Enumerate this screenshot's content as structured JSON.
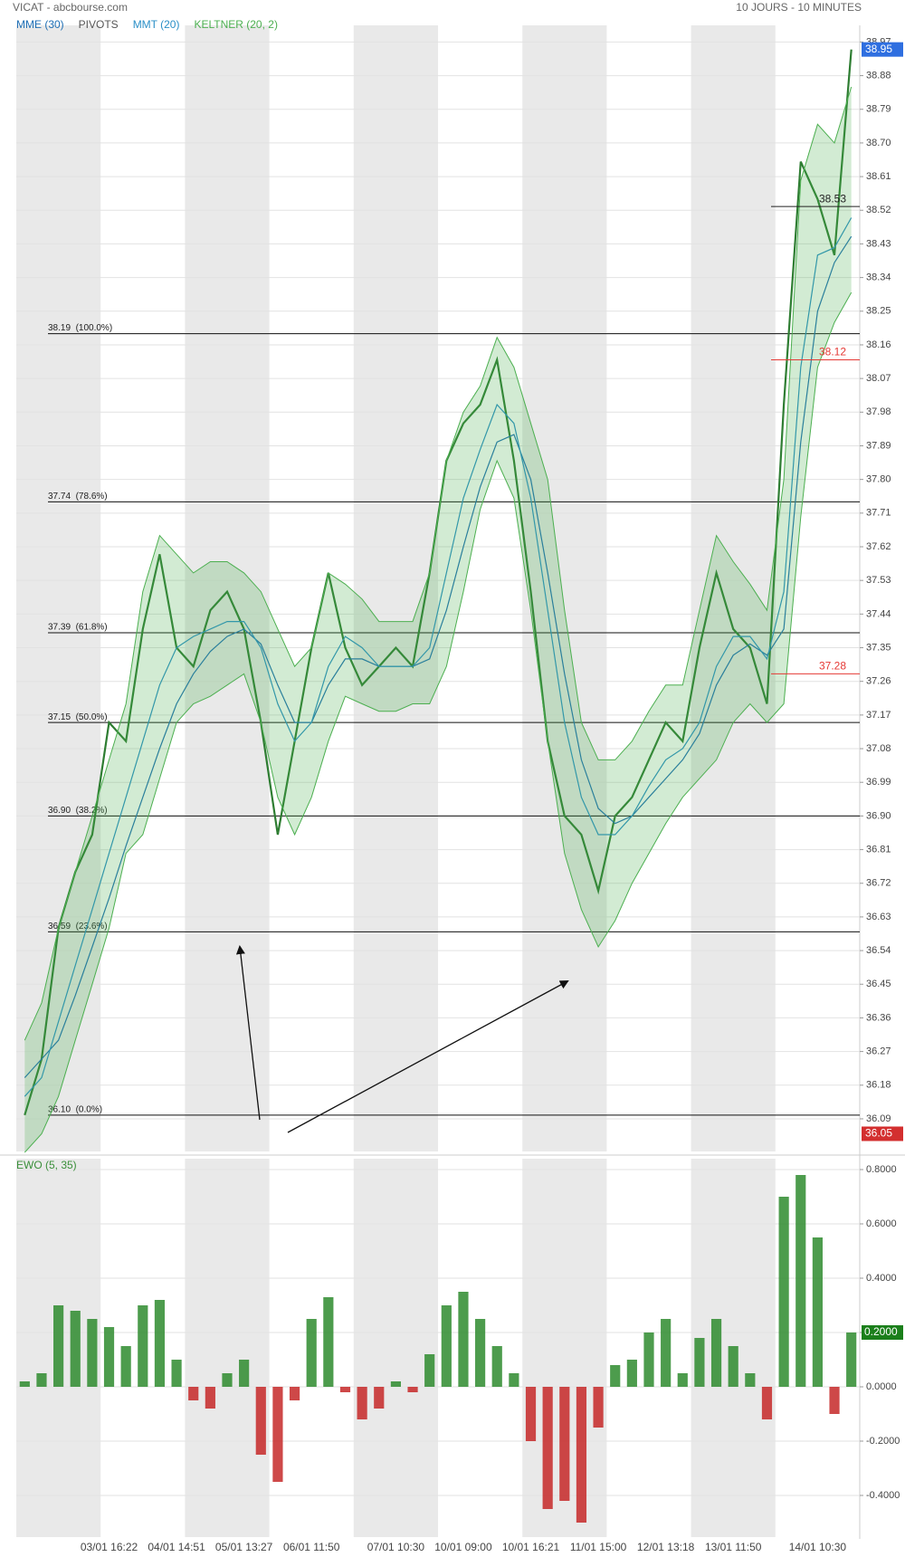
{
  "header": {
    "title": "VICAT - abcbourse.com",
    "period": "10 JOURS - 10 MINUTES"
  },
  "chart_data": [
    {
      "type": "line",
      "ylim": [
        36.01,
        39.0
      ],
      "yticks": [
        36.09,
        36.18,
        36.27,
        36.36,
        36.45,
        36.54,
        36.63,
        36.72,
        36.81,
        {
          "value": 36.9,
          "label": "36.90"
        },
        36.99,
        37.08,
        37.17,
        37.26,
        37.35,
        37.44,
        37.53,
        37.62,
        37.71,
        {
          "value": 37.8,
          "label": "37.80"
        },
        37.89,
        37.98,
        38.07,
        38.16,
        38.25,
        38.34,
        38.43,
        38.52,
        38.61,
        {
          "value": 38.7,
          "label": "38.70"
        },
        38.79,
        38.88,
        38.97
      ],
      "grid": true,
      "series": [
        {
          "color": "#2e7d32",
          "values": [
            36.1,
            36.25,
            36.6,
            36.75,
            36.85,
            37.15,
            37.1,
            37.4,
            37.6,
            37.35,
            37.3,
            37.45,
            37.5,
            37.4,
            37.15,
            36.85,
            37.1,
            37.35,
            37.55,
            37.35,
            37.25,
            37.3,
            37.35,
            37.3,
            37.55,
            37.85,
            37.95,
            38.0,
            38.12,
            37.85,
            37.5,
            37.1,
            36.9,
            36.85,
            36.7,
            36.9,
            36.95,
            37.05,
            37.15,
            37.1,
            37.35,
            37.55,
            37.4,
            37.35,
            37.2,
            38.0,
            38.65,
            38.55,
            38.4,
            38.95
          ]
        },
        {
          "name": "MME (30)",
          "color": "#1f6fb5",
          "values": [
            36.2,
            36.25,
            36.3,
            36.42,
            36.55,
            36.68,
            36.82,
            36.95,
            37.08,
            37.2,
            37.28,
            37.34,
            37.38,
            37.4,
            37.36,
            37.25,
            37.15,
            37.15,
            37.25,
            37.32,
            37.32,
            37.3,
            37.3,
            37.3,
            37.32,
            37.45,
            37.62,
            37.78,
            37.9,
            37.92,
            37.8,
            37.55,
            37.28,
            37.05,
            36.92,
            36.88,
            36.9,
            36.95,
            37.0,
            37.05,
            37.12,
            37.25,
            37.33,
            37.36,
            37.33,
            37.4,
            37.9,
            38.25,
            38.38,
            38.45
          ]
        },
        {
          "name": "MMT (20)",
          "color": "#2a8fc7",
          "values": [
            36.15,
            36.2,
            36.35,
            36.5,
            36.65,
            36.8,
            36.95,
            37.1,
            37.25,
            37.35,
            37.38,
            37.4,
            37.42,
            37.42,
            37.35,
            37.2,
            37.1,
            37.15,
            37.3,
            37.38,
            37.35,
            37.3,
            37.3,
            37.3,
            37.35,
            37.55,
            37.75,
            37.88,
            38.0,
            37.95,
            37.75,
            37.45,
            37.15,
            36.95,
            36.85,
            36.85,
            36.9,
            36.98,
            37.05,
            37.08,
            37.15,
            37.3,
            37.38,
            37.38,
            37.32,
            37.5,
            38.1,
            38.4,
            38.42,
            38.5
          ]
        },
        {
          "name": "KELTNER (20, 2)",
          "color": "#4caf50",
          "upper": [
            36.3,
            36.4,
            36.6,
            36.75,
            36.9,
            37.05,
            37.2,
            37.5,
            37.65,
            37.6,
            37.55,
            37.58,
            37.58,
            37.55,
            37.5,
            37.4,
            37.3,
            37.35,
            37.55,
            37.52,
            37.48,
            37.42,
            37.42,
            37.42,
            37.55,
            37.85,
            37.98,
            38.05,
            38.18,
            38.1,
            37.95,
            37.8,
            37.45,
            37.15,
            37.05,
            37.05,
            37.1,
            37.18,
            37.25,
            37.25,
            37.45,
            37.65,
            37.58,
            37.52,
            37.45,
            37.8,
            38.6,
            38.75,
            38.7,
            38.85
          ],
          "lower": [
            36.0,
            36.05,
            36.15,
            36.3,
            36.45,
            36.6,
            36.8,
            36.85,
            37.0,
            37.15,
            37.2,
            37.22,
            37.25,
            37.28,
            37.15,
            36.95,
            36.85,
            36.95,
            37.1,
            37.22,
            37.2,
            37.18,
            37.18,
            37.2,
            37.2,
            37.3,
            37.5,
            37.72,
            37.85,
            37.75,
            37.45,
            37.1,
            36.8,
            36.65,
            36.55,
            36.62,
            36.72,
            36.8,
            36.88,
            36.95,
            37.0,
            37.05,
            37.15,
            37.2,
            37.15,
            37.2,
            37.7,
            38.1,
            38.22,
            38.3
          ]
        }
      ],
      "pivots": {
        "name": "PIVOTS",
        "levels": [
          {
            "value": 38.53,
            "color": "#222222"
          },
          {
            "value": 38.12,
            "color": "#e53935"
          },
          {
            "value": 37.28,
            "color": "#e53935"
          }
        ]
      },
      "fibonacci": [
        {
          "value": 38.19,
          "label": "38.19  (100.0%)"
        },
        {
          "value": 37.74,
          "label": "37.74  (78.6%)"
        },
        {
          "value": 37.39,
          "label": "37.39  (61.8%)"
        },
        {
          "value": 37.15,
          "label": "37.15  (50.0%)"
        },
        {
          "value": 36.9,
          "label": "36.90  (38.2%)"
        },
        {
          "value": 36.59,
          "label": "36.59  (23.6%)"
        },
        {
          "value": 36.1,
          "label": "36.10  (0.0%)"
        }
      ],
      "last": {
        "value": 38.95,
        "color": "#2f6fe0"
      },
      "low": {
        "value": 36.05,
        "color": "#d32f2f"
      }
    },
    {
      "type": "bar",
      "title": "EWO (5, 35)",
      "categories": [
        null,
        null,
        null,
        null,
        null,
        "03/01 16:22",
        null,
        null,
        null,
        "04/01 14:51",
        null,
        null,
        null,
        "05/01 13:27",
        null,
        null,
        null,
        "06/01 11:50",
        null,
        null,
        null,
        null,
        "07/01 10:30",
        null,
        null,
        null,
        "10/01 09:00",
        null,
        null,
        null,
        "10/01 16:21",
        null,
        null,
        null,
        "11/01 15:00",
        null,
        null,
        null,
        "12/01 13:18",
        null,
        null,
        null,
        "13/01 11:50",
        null,
        null,
        null,
        null,
        "14/01 10:30",
        null,
        null
      ],
      "values": [
        0.02,
        0.05,
        0.3,
        0.28,
        0.25,
        0.22,
        0.15,
        0.3,
        0.32,
        0.1,
        -0.05,
        -0.08,
        0.05,
        0.1,
        -0.25,
        -0.35,
        -0.05,
        0.25,
        0.33,
        -0.02,
        -0.12,
        -0.08,
        0.02,
        -0.02,
        0.12,
        0.3,
        0.35,
        0.25,
        0.15,
        0.05,
        -0.2,
        -0.45,
        -0.42,
        -0.5,
        -0.15,
        0.08,
        0.1,
        0.2,
        0.25,
        0.05,
        0.18,
        0.25,
        0.15,
        0.05,
        -0.12,
        0.7,
        0.78,
        0.55,
        -0.1,
        0.2
      ],
      "up_color": "#2e8b2e",
      "down_color": "#c62828",
      "ylim": [
        -0.52,
        0.86
      ],
      "yticks": [
        {
          "value": 0.8,
          "label": "0.8000"
        },
        {
          "value": 0.6,
          "label": "0.6000"
        },
        {
          "value": 0.4,
          "label": "0.4000"
        },
        {
          "value": 0.2,
          "label": "0.2000"
        },
        {
          "value": 0,
          "label": "0.0000"
        },
        {
          "value": -0.2,
          "label": "-0.2000"
        },
        {
          "value": -0.4,
          "label": "-0.4000"
        }
      ],
      "grid": true,
      "last": {
        "value": 0.2,
        "label": "0.2000",
        "color": "#1b7f1b"
      }
    }
  ]
}
